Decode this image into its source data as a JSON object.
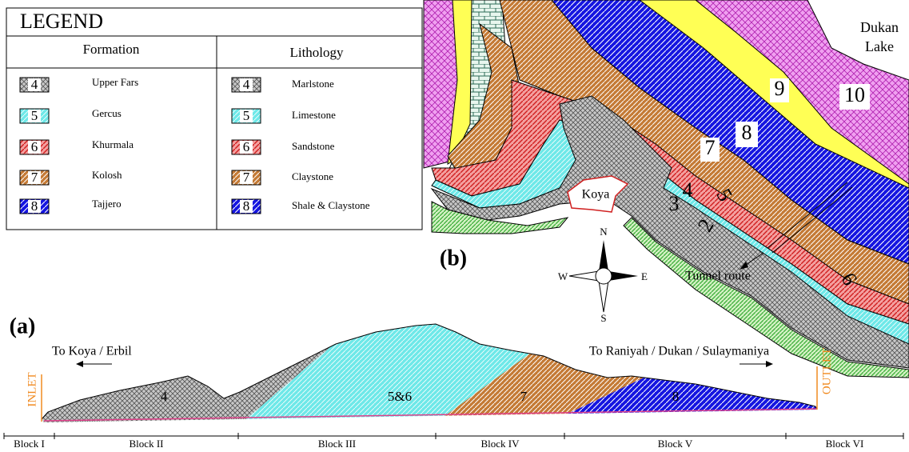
{
  "legend": {
    "title": "LEGEND",
    "formation_header": "Formation",
    "lithology_header": "Lithology",
    "rows": [
      {
        "number": "4",
        "formation": "Upper Fars",
        "lithology": "Marlstone"
      },
      {
        "number": "5",
        "formation": "Gercus",
        "lithology": "Limestone"
      },
      {
        "number": "6",
        "formation": "Khurmala",
        "lithology": "Sandstone"
      },
      {
        "number": "7",
        "formation": "Kolosh",
        "lithology": "Claystone"
      },
      {
        "number": "8",
        "formation": "Tajjero",
        "lithology": "Shale & Claystone"
      }
    ]
  },
  "map": {
    "label": "(b)",
    "lake": [
      "Dukan",
      "Lake"
    ],
    "unit_labels": [
      "9",
      "10",
      "8",
      "7",
      "4",
      "5",
      "3",
      "2",
      "6"
    ],
    "town": "Koya",
    "tunnel": "Tunnel route",
    "compass": {
      "n": "N",
      "s": "S",
      "w": "W",
      "e": "E"
    }
  },
  "section": {
    "label": "(a)",
    "left_direction": "To Koya / Erbil",
    "right_direction": "To Raniyah / Dukan / Sulaymaniya",
    "inlet": "INLET",
    "outlet": "OUTLET",
    "units": [
      "4",
      "5&6",
      "7",
      "8"
    ],
    "blocks": [
      "Block I",
      "Block II",
      "Block III",
      "Block IV",
      "Block V",
      "Block VI"
    ]
  }
}
